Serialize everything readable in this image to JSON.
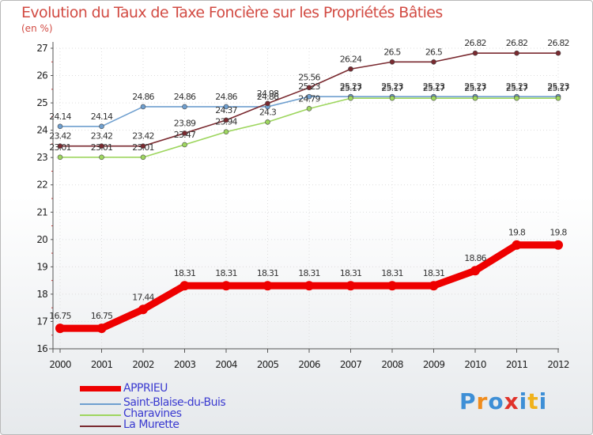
{
  "chart_data": {
    "type": "line",
    "title": "Evolution du Taux de Taxe Foncière sur les Propriétés Bâties",
    "ylabel": "(en %)",
    "xlabel": "",
    "ylim": [
      16,
      27
    ],
    "x": [
      "2000",
      "2001",
      "2002",
      "2003",
      "2004",
      "2005",
      "2006",
      "2007",
      "2008",
      "2009",
      "2010",
      "2011",
      "2012"
    ],
    "y_ticks": [
      "16",
      "17",
      "18",
      "19",
      "20",
      "21",
      "22",
      "23",
      "24",
      "25",
      "26",
      "27"
    ],
    "series": [
      {
        "name": "APPRIEU",
        "color": "#ee0000",
        "values": [
          16.75,
          16.75,
          17.44,
          18.31,
          18.31,
          18.31,
          18.31,
          18.31,
          18.31,
          18.31,
          18.86,
          19.8,
          19.8
        ],
        "labels": [
          "16.75",
          "16.75",
          "17.44",
          "18.31",
          "18.31",
          "18.31",
          "18.31",
          "18.31",
          "18.31",
          "18.31",
          "18.86",
          "19.8",
          "19.8"
        ]
      },
      {
        "name": "Saint-Blaise-du-Buis",
        "color": "#6f9fcf",
        "values": [
          24.14,
          24.14,
          24.86,
          24.86,
          24.86,
          24.86,
          25.23,
          25.23,
          25.23,
          25.23,
          25.23,
          25.23,
          25.23
        ],
        "labels": [
          "24.14",
          "24.14",
          "24.86",
          "24.86",
          "24.86",
          "24.86",
          "25.23",
          "25.23",
          "25.23",
          "25.23",
          "25.23",
          "25.23",
          "25.23"
        ]
      },
      {
        "name": "Charavines",
        "color": "#9ed65f",
        "values": [
          23.01,
          23.01,
          23.01,
          23.47,
          23.94,
          24.3,
          24.79,
          25.17,
          25.17,
          25.17,
          25.17,
          25.17,
          25.17
        ],
        "labels": [
          "23.01",
          "23.01",
          "23.01",
          "23.47",
          "23.94",
          "24.3",
          "24.79",
          "25.17",
          "25.17",
          "25.17",
          "25.17",
          "25.17",
          "25.17"
        ]
      },
      {
        "name": "La Murette",
        "color": "#7a2a30",
        "values": [
          23.42,
          23.42,
          23.42,
          23.89,
          24.37,
          24.98,
          25.56,
          26.24,
          26.5,
          26.5,
          26.82,
          26.82,
          26.82
        ],
        "labels": [
          "23.42",
          "23.42",
          "23.42",
          "23.89",
          "24.37",
          "24.98",
          "25.56",
          "26.24",
          "26.5",
          "26.5",
          "26.82",
          "26.82",
          "26.82"
        ]
      }
    ]
  },
  "logo": {
    "letters": [
      "P",
      "r",
      "o",
      "x",
      "i",
      "t",
      "i"
    ],
    "colors": [
      "#3e8fd6",
      "#f08c1c",
      "#3e8fd6",
      "#e0322a",
      "#3e8fd6",
      "#f0b21c",
      "#3e8fd6"
    ]
  }
}
